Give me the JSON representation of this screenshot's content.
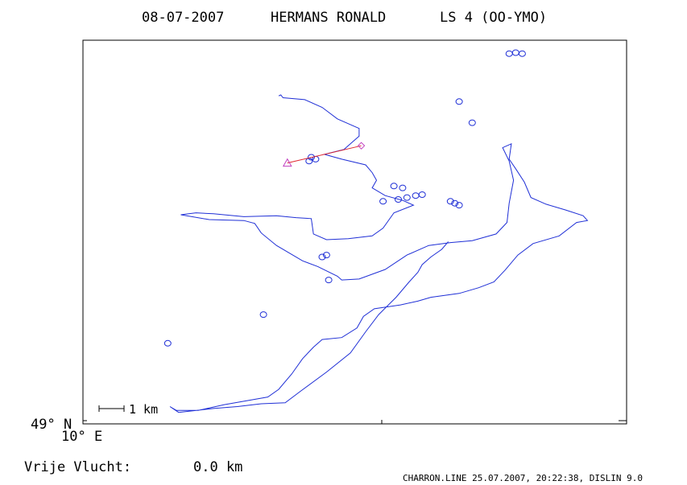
{
  "header": {
    "date": "08-07-2007",
    "pilot": "HERMANS RONALD",
    "glider": "LS 4 (OO-YMO)"
  },
  "axes": {
    "lat_label": "49° N",
    "lon_label": "10° E"
  },
  "scale": {
    "label": "1 km"
  },
  "footer": {
    "free_flight_label": "Vrije Vlucht:",
    "free_flight_value": "0.0 km",
    "program": "CHARRON.LINE 25.07.2007, 20:22:38, DISLIN 9.0"
  },
  "colors": {
    "track": "#1f2fd6",
    "task": "#e0242c",
    "markers": "#c040c0"
  },
  "chart_data": {
    "type": "line",
    "title": "08-07-2007   HERMANS RONALD   LS 4 (OO-YMO)",
    "xlabel": "",
    "ylabel": "",
    "grid": false,
    "series": [
      {
        "values_xy_km": [
          [
            9.0,
            7.1
          ],
          [
            9.1,
            7.15
          ],
          [
            9.2,
            7.0
          ],
          [
            10.2,
            6.9
          ],
          [
            11.0,
            6.5
          ],
          [
            11.7,
            5.9
          ],
          [
            12.7,
            5.4
          ],
          [
            12.7,
            5.0
          ],
          [
            12.3,
            4.6
          ],
          [
            12.0,
            4.3
          ],
          [
            11.1,
            4.05
          ],
          [
            11.9,
            3.8
          ],
          [
            13.0,
            3.5
          ],
          [
            13.3,
            3.1
          ],
          [
            13.5,
            2.7
          ],
          [
            13.3,
            2.3
          ],
          [
            13.9,
            1.9
          ],
          [
            14.7,
            1.65
          ],
          [
            15.2,
            1.4
          ],
          [
            14.3,
            1.0
          ],
          [
            13.8,
            0.2
          ],
          [
            13.3,
            -0.2
          ],
          [
            12.2,
            -0.35
          ],
          [
            11.2,
            -0.4
          ],
          [
            10.6,
            -0.1
          ],
          [
            10.5,
            0.7
          ],
          [
            9.8,
            0.75
          ],
          [
            8.9,
            0.85
          ],
          [
            7.4,
            0.8
          ],
          [
            6.0,
            0.95
          ],
          [
            5.2,
            1.0
          ],
          [
            4.5,
            0.9
          ],
          [
            5.8,
            0.65
          ],
          [
            7.4,
            0.6
          ],
          [
            7.9,
            0.45
          ],
          [
            8.2,
            -0.05
          ],
          [
            8.9,
            -0.7
          ],
          [
            10.1,
            -1.5
          ],
          [
            10.8,
            -1.8
          ],
          [
            11.7,
            -2.3
          ],
          [
            11.9,
            -2.5
          ],
          [
            12.7,
            -2.45
          ],
          [
            13.9,
            -1.95
          ],
          [
            14.9,
            -1.2
          ],
          [
            15.9,
            -0.7
          ],
          [
            16.9,
            -0.55
          ],
          [
            17.9,
            -0.45
          ],
          [
            19.0,
            -0.1
          ],
          [
            19.5,
            0.5
          ],
          [
            19.6,
            1.5
          ],
          [
            19.8,
            2.7
          ],
          [
            19.6,
            3.7
          ],
          [
            19.3,
            4.4
          ],
          [
            19.7,
            4.6
          ],
          [
            19.6,
            3.8
          ],
          [
            19.9,
            3.3
          ],
          [
            20.3,
            2.6
          ],
          [
            20.6,
            1.8
          ],
          [
            21.3,
            1.45
          ],
          [
            22.2,
            1.15
          ],
          [
            23.0,
            0.85
          ],
          [
            23.2,
            0.6
          ],
          [
            22.7,
            0.5
          ],
          [
            21.9,
            -0.2
          ],
          [
            20.7,
            -0.6
          ],
          [
            20.0,
            -1.2
          ],
          [
            19.4,
            -2.0
          ],
          [
            18.9,
            -2.6
          ],
          [
            18.2,
            -2.9
          ],
          [
            17.3,
            -3.2
          ],
          [
            16.0,
            -3.4
          ],
          [
            15.4,
            -3.6
          ],
          [
            14.6,
            -3.8
          ],
          [
            13.4,
            -4.0
          ],
          [
            12.9,
            -4.4
          ],
          [
            12.6,
            -5.0
          ],
          [
            11.9,
            -5.5
          ],
          [
            11.0,
            -5.6
          ],
          [
            10.6,
            -6.0
          ],
          [
            10.1,
            -6.6
          ],
          [
            9.6,
            -7.4
          ],
          [
            9.0,
            -8.2
          ],
          [
            8.5,
            -8.6
          ],
          [
            7.5,
            -8.8
          ],
          [
            6.5,
            -9.0
          ],
          [
            5.3,
            -9.3
          ],
          [
            4.3,
            -9.3
          ],
          [
            4.0,
            -9.1
          ],
          [
            4.4,
            -9.4
          ],
          [
            6.0,
            -9.2
          ],
          [
            7.1,
            -9.1
          ],
          [
            8.2,
            -8.95
          ],
          [
            9.3,
            -8.9
          ],
          [
            10.0,
            -8.3
          ],
          [
            11.2,
            -7.3
          ],
          [
            12.3,
            -6.3
          ],
          [
            13.0,
            -5.2
          ],
          [
            13.6,
            -4.3
          ],
          [
            14.4,
            -3.4
          ],
          [
            15.0,
            -2.6
          ],
          [
            15.4,
            -2.1
          ],
          [
            15.6,
            -1.7
          ],
          [
            16.0,
            -1.3
          ],
          [
            16.5,
            -0.9
          ],
          [
            16.8,
            -0.5
          ]
        ]
      }
    ],
    "task": [
      {
        "name": "start",
        "x": 9.4,
        "y": 3.6
      },
      {
        "name": "turnpoint",
        "x": 12.8,
        "y": 4.5
      }
    ],
    "xlim": [
      0,
      25
    ],
    "ylim": [
      -10,
      10
    ]
  }
}
